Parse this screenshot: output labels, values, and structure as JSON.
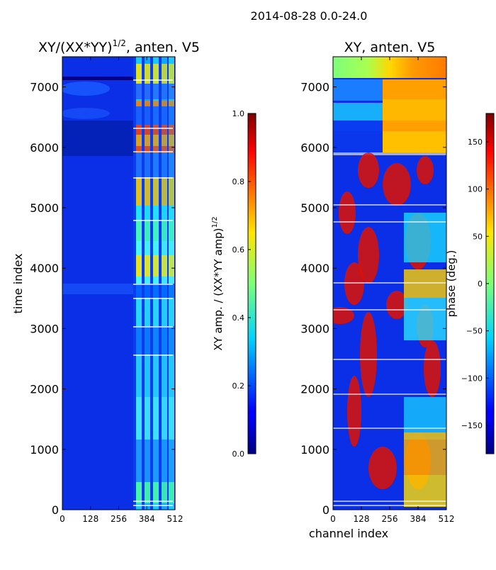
{
  "figure": {
    "suptitle": "2014-08-28 0.0-24.0"
  },
  "chart_data": [
    {
      "type": "heatmap",
      "title_main": "XY/(XX*YY)",
      "title_sup": "1/2",
      "title_rest": ", anten. V5",
      "ylabel": "time index",
      "xlim": [
        0,
        512
      ],
      "ylim": [
        0,
        7500
      ],
      "xticks": [
        "0",
        "128",
        "256",
        "384",
        "512"
      ],
      "yticks": [
        "0",
        "1000",
        "2000",
        "3000",
        "4000",
        "5000",
        "6000",
        "7000"
      ],
      "colorbar": {
        "label_main": "XY amp. / (XX*YY amp)",
        "label_sup": "1/2",
        "range": [
          0,
          1
        ],
        "ticks": [
          "0.0",
          "0.2",
          "0.4",
          "0.6",
          "0.8",
          "1.0"
        ]
      }
    },
    {
      "type": "heatmap",
      "title_main": "XY, anten. V5",
      "xlabel": "channel index",
      "xlim": [
        0,
        512
      ],
      "ylim": [
        0,
        7500
      ],
      "xticks": [
        "0",
        "128",
        "256",
        "384",
        "512"
      ],
      "yticks": [
        "0",
        "1000",
        "2000",
        "3000",
        "4000",
        "5000",
        "6000",
        "7000"
      ],
      "colorbar": {
        "label_main": "phase (deg.)",
        "range": [
          -180,
          180
        ],
        "ticks": [
          "−150",
          "−100",
          "−50",
          "0",
          "50",
          "100",
          "150"
        ]
      }
    }
  ]
}
